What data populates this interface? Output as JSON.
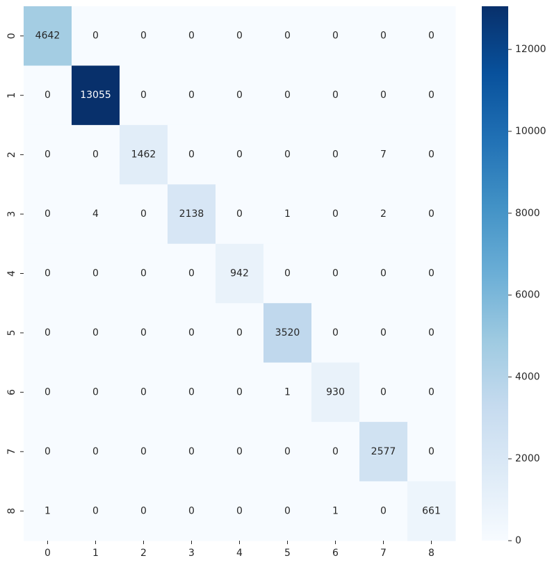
{
  "chart_data": {
    "type": "heatmap",
    "title": "",
    "xlabel": "",
    "ylabel": "",
    "x_categories": [
      "0",
      "1",
      "2",
      "3",
      "4",
      "5",
      "6",
      "7",
      "8"
    ],
    "y_categories": [
      "0",
      "1",
      "2",
      "3",
      "4",
      "5",
      "6",
      "7",
      "8"
    ],
    "values": [
      [
        4642,
        0,
        0,
        0,
        0,
        0,
        0,
        0,
        0
      ],
      [
        0,
        13055,
        0,
        0,
        0,
        0,
        0,
        0,
        0
      ],
      [
        0,
        0,
        1462,
        0,
        0,
        0,
        0,
        7,
        0
      ],
      [
        0,
        4,
        0,
        2138,
        0,
        1,
        0,
        2,
        0
      ],
      [
        0,
        0,
        0,
        0,
        942,
        0,
        0,
        0,
        0
      ],
      [
        0,
        0,
        0,
        0,
        0,
        3520,
        0,
        0,
        0
      ],
      [
        0,
        0,
        0,
        0,
        0,
        1,
        930,
        0,
        0
      ],
      [
        0,
        0,
        0,
        0,
        0,
        0,
        0,
        2577,
        0
      ],
      [
        1,
        0,
        0,
        0,
        0,
        0,
        1,
        0,
        661
      ]
    ],
    "colormap": "Blues",
    "colorbar": {
      "range": [
        0,
        13055
      ],
      "ticks": [
        0,
        2000,
        4000,
        6000,
        8000,
        10000,
        12000
      ]
    },
    "annotations": true,
    "grid": false
  }
}
